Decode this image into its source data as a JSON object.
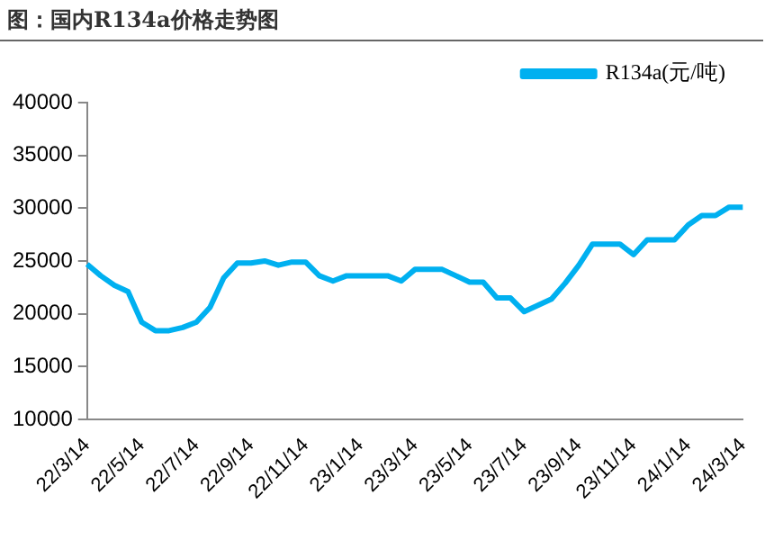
{
  "chart_data": {
    "type": "line",
    "title": "图：国内R134a价格走势图",
    "categories": [
      "22/3/14",
      null,
      null,
      null,
      "22/5/14",
      null,
      null,
      null,
      "22/7/14",
      null,
      null,
      null,
      "22/9/14",
      null,
      null,
      null,
      "22/11/14",
      null,
      null,
      null,
      "23/1/14",
      null,
      null,
      null,
      "23/3/14",
      null,
      null,
      null,
      "23/5/14",
      null,
      null,
      null,
      "23/7/14",
      null,
      null,
      null,
      "23/9/14",
      null,
      null,
      null,
      "23/11/14",
      null,
      null,
      null,
      "24/1/14",
      null,
      null,
      null,
      "24/3/14"
    ],
    "series": [
      {
        "name": "R134a(元/吨)",
        "color": "#00b0f0",
        "values": [
          24700,
          23600,
          22700,
          22100,
          19200,
          18400,
          18400,
          18700,
          19200,
          20600,
          23400,
          24800,
          24800,
          25000,
          24600,
          24900,
          24900,
          23600,
          23100,
          23600,
          23600,
          23600,
          23600,
          23100,
          24200,
          24200,
          24200,
          23600,
          23000,
          23000,
          21500,
          21500,
          20200,
          20800,
          21400,
          22900,
          24600,
          26600,
          26600,
          26600,
          25600,
          27000,
          27000,
          27000,
          28400,
          29300,
          29300,
          30100,
          30100
        ]
      }
    ],
    "ylim": [
      10000,
      40000
    ],
    "yticks": [
      10000,
      15000,
      20000,
      25000,
      30000,
      35000,
      40000
    ],
    "grid": false,
    "legend": "top right",
    "marker": "none",
    "line_style": "solid"
  }
}
